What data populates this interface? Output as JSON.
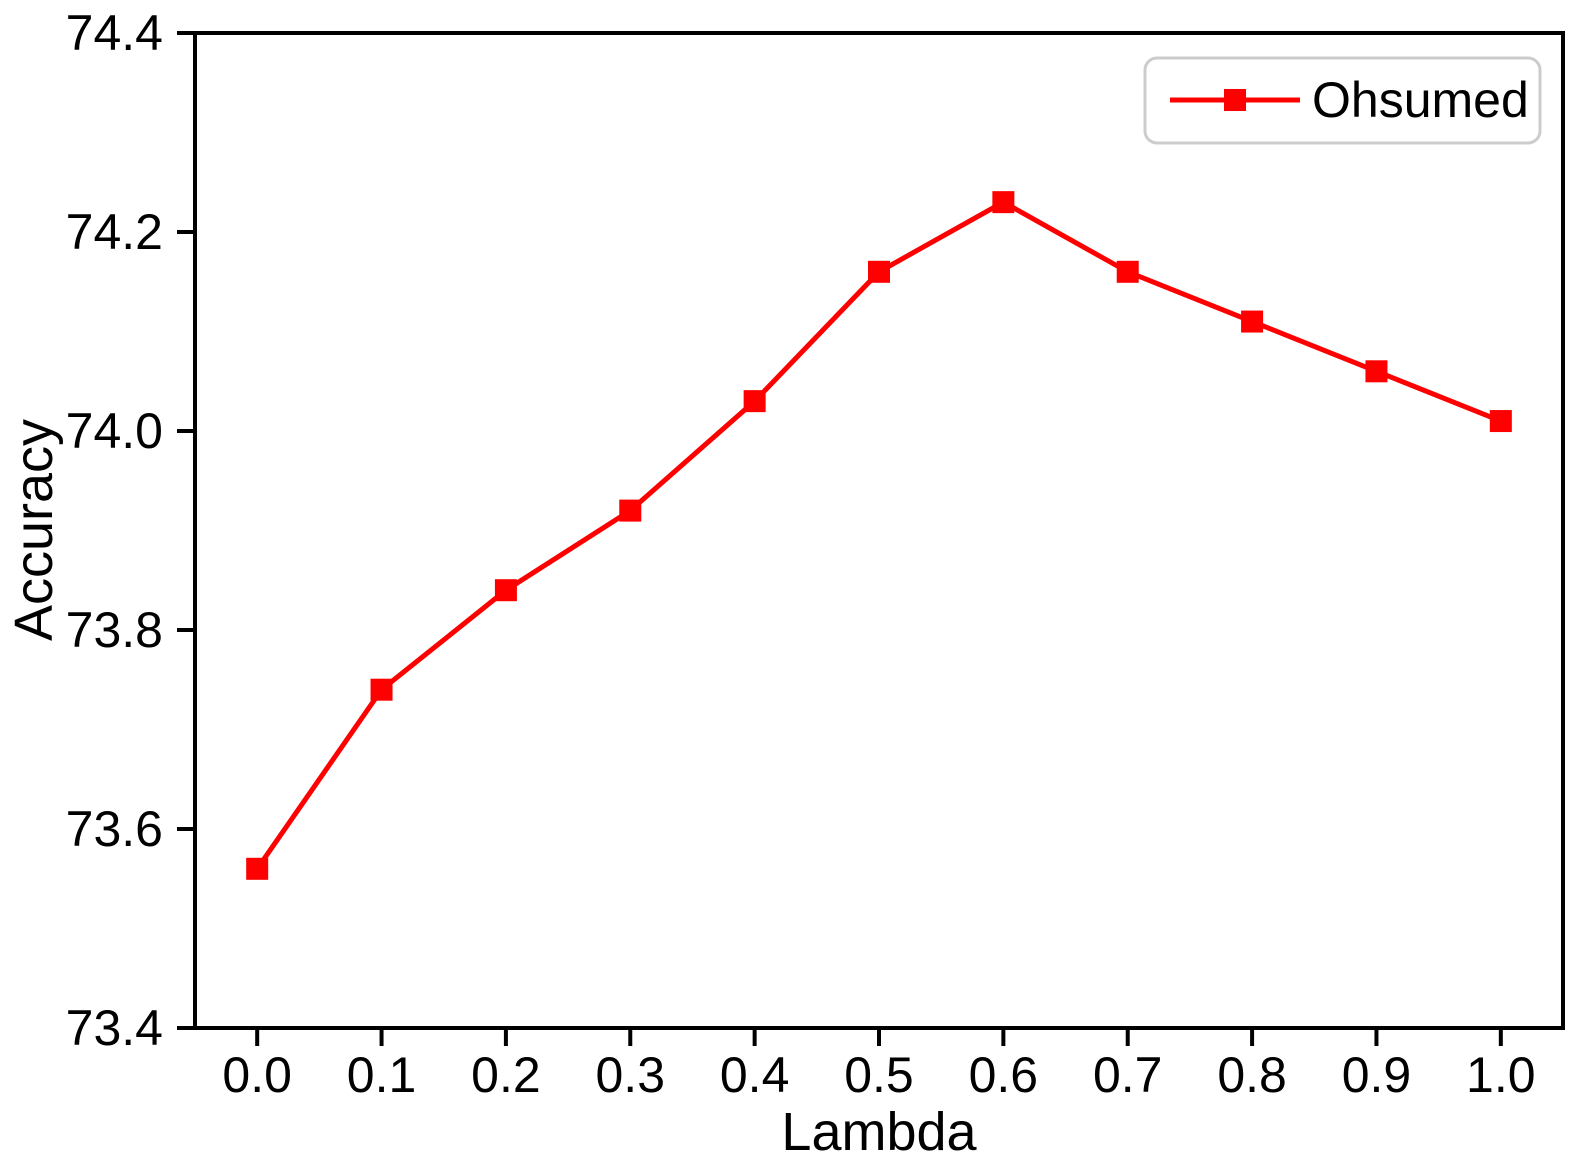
{
  "chart_data": {
    "type": "line",
    "title": "",
    "xlabel": "Lambda",
    "ylabel": "Accuracy",
    "x": [
      0.0,
      0.1,
      0.2,
      0.3,
      0.4,
      0.5,
      0.6,
      0.7,
      0.8,
      0.9,
      1.0
    ],
    "xtick_labels": [
      "0.0",
      "0.1",
      "0.2",
      "0.3",
      "0.4",
      "0.5",
      "0.6",
      "0.7",
      "0.8",
      "0.9",
      "1.0"
    ],
    "yticks": [
      73.4,
      73.6,
      73.8,
      74.0,
      74.2,
      74.4
    ],
    "ytick_labels": [
      "73.4",
      "73.6",
      "73.8",
      "74.0",
      "74.2",
      "74.4"
    ],
    "xlim": [
      -0.05,
      1.05
    ],
    "ylim": [
      73.4,
      74.4
    ],
    "grid": false,
    "series": [
      {
        "name": "Ohsumed",
        "marker": "square",
        "color": "#ff0000",
        "values": [
          73.56,
          73.74,
          73.84,
          73.92,
          74.03,
          74.16,
          74.23,
          74.16,
          74.11,
          74.06,
          74.01
        ]
      }
    ],
    "legend": {
      "position": "upper right",
      "entries": [
        "Ohsumed"
      ]
    },
    "styles": {
      "line_color": "#ff0000",
      "axis_color": "#000000",
      "legend_border_color": "#cccccc",
      "background_color": "#ffffff"
    }
  }
}
